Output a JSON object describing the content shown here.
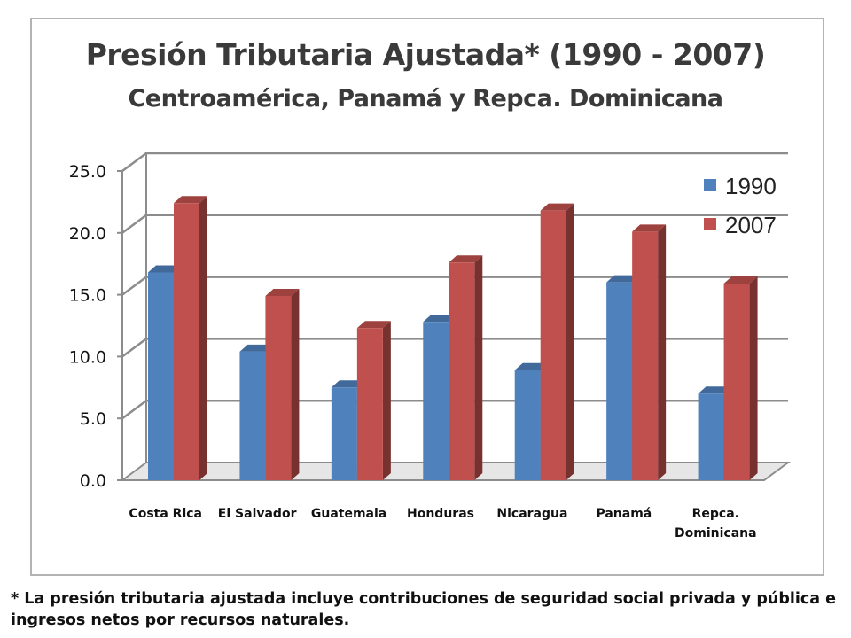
{
  "title": "Presión Tributaria Ajustada* (1990 - 2007)",
  "subtitle": "Centroamérica, Panamá y Repca. Dominicana",
  "footnote": "* La presión tributaria ajustada incluye contribuciones de seguridad social privada y pública e ingresos netos por recursos naturales.",
  "chart_data": {
    "type": "bar",
    "categories": [
      [
        "Costa Rica"
      ],
      [
        "El Salvador"
      ],
      [
        "Guatemala"
      ],
      [
        "Honduras"
      ],
      [
        "Nicaragua"
      ],
      [
        "Panamá"
      ],
      [
        "Repca.",
        "Dominicana"
      ]
    ],
    "series": [
      {
        "name": "1990",
        "color": "#4f81bd",
        "values": [
          16.8,
          10.4,
          7.5,
          12.8,
          8.9,
          16.0,
          7.0
        ]
      },
      {
        "name": "2007",
        "color": "#c0504d",
        "values": [
          22.4,
          14.9,
          12.3,
          17.6,
          21.8,
          20.1,
          15.9
        ]
      }
    ],
    "yticks": [
      "0.0",
      "5.0",
      "10.0",
      "15.0",
      "20.0",
      "25.0"
    ],
    "ylim": [
      0,
      25
    ],
    "grid": true,
    "legend_position": "top-right",
    "style": "3d-clustered-column"
  }
}
